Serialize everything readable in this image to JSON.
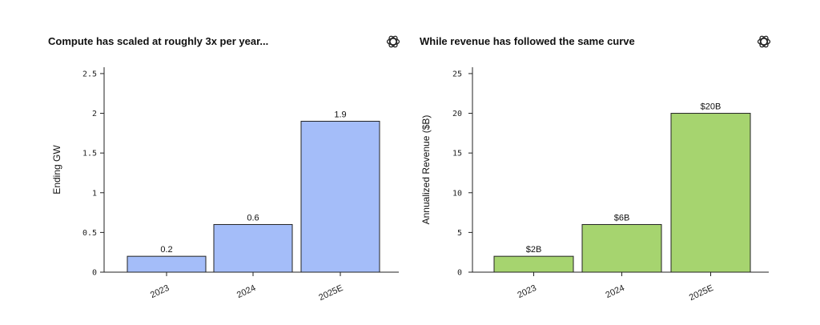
{
  "logo_icon": "openai-logo-icon",
  "chart_data": [
    {
      "type": "bar",
      "title": "Compute has scaled at roughly 3x per year...",
      "xlabel": "",
      "ylabel": "Ending GW",
      "categories": [
        "2023",
        "2024",
        "2025E"
      ],
      "values": [
        0.2,
        0.6,
        1.9
      ],
      "value_labels": [
        "0.2",
        "0.6",
        "1.9"
      ],
      "yticks": [
        0,
        0.5,
        1,
        1.5,
        2,
        2.5
      ],
      "ytick_labels": [
        "0",
        "0.5",
        "1",
        "1.5",
        "2",
        "2.5"
      ],
      "ylim": [
        0,
        2.6
      ],
      "bar_color": "#a4bdf9",
      "bar_edge_color": "#222222",
      "grid": false,
      "legend": "none"
    },
    {
      "type": "bar",
      "title": "While revenue has followed the same curve",
      "xlabel": "",
      "ylabel": "Annualized Revenue ($B)",
      "categories": [
        "2023",
        "2024",
        "2025E"
      ],
      "values": [
        2,
        6,
        20
      ],
      "value_labels": [
        "$2B",
        "$6B",
        "$20B"
      ],
      "yticks": [
        0,
        5,
        10,
        15,
        20,
        25
      ],
      "ytick_labels": [
        "0",
        "5",
        "10",
        "15",
        "20",
        "25"
      ],
      "ylim": [
        0,
        26
      ],
      "bar_color": "#a6d46f",
      "bar_edge_color": "#222222",
      "grid": false,
      "legend": "none"
    }
  ]
}
